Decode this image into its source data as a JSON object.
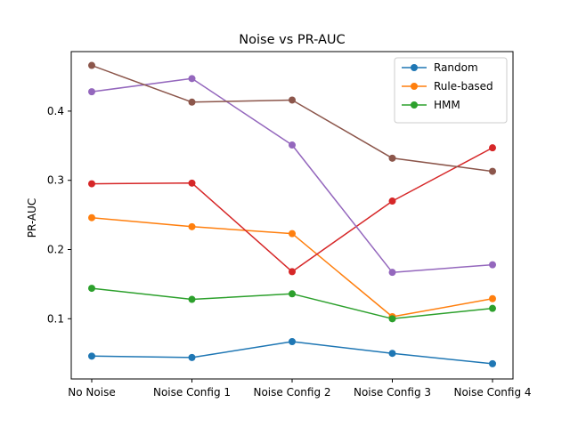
{
  "chart_data": {
    "type": "line",
    "title": "Noise vs PR-AUC",
    "xlabel": "",
    "ylabel": "PR-AUC",
    "categories": [
      "No Noise",
      "Noise Config 1",
      "Noise Config 2",
      "Noise Config 3",
      "Noise Config 4"
    ],
    "ylim": [
      0.013,
      0.486
    ],
    "yticks": [
      0.1,
      0.2,
      0.3,
      0.4
    ],
    "ytick_labels": [
      "0.1",
      "0.2",
      "0.3",
      "0.4"
    ],
    "legend_position": "top-right",
    "grid": false,
    "series": [
      {
        "name": "Random",
        "color": "#1f77b4",
        "in_legend": true,
        "values": [
          0.046,
          0.044,
          0.067,
          0.05,
          0.035
        ]
      },
      {
        "name": "Rule-based",
        "color": "#ff7f0e",
        "in_legend": true,
        "values": [
          0.246,
          0.233,
          0.223,
          0.103,
          0.129
        ]
      },
      {
        "name": "HMM",
        "color": "#2ca02c",
        "in_legend": true,
        "values": [
          0.144,
          0.128,
          0.136,
          0.1,
          0.115
        ]
      },
      {
        "name": "",
        "color": "#d62728",
        "in_legend": false,
        "values": [
          0.295,
          0.296,
          0.168,
          0.27,
          0.347
        ]
      },
      {
        "name": "",
        "color": "#9467bd",
        "in_legend": false,
        "values": [
          0.428,
          0.447,
          0.351,
          0.167,
          0.178
        ]
      },
      {
        "name": "",
        "color": "#8c564b",
        "in_legend": false,
        "values": [
          0.466,
          0.413,
          0.416,
          0.332,
          0.313
        ]
      }
    ]
  }
}
